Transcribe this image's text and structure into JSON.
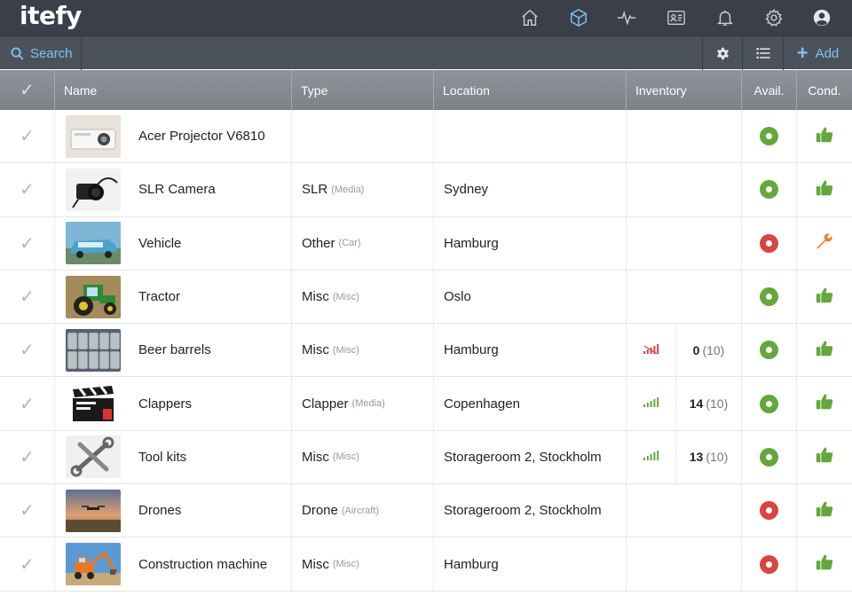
{
  "app": {
    "logo": "itefy"
  },
  "nav": [
    {
      "icon": "home-icon"
    },
    {
      "icon": "box-icon",
      "active": true
    },
    {
      "icon": "activity-icon"
    },
    {
      "icon": "id-card-icon"
    },
    {
      "icon": "bell-icon"
    },
    {
      "icon": "gear-icon"
    },
    {
      "icon": "user-icon"
    }
  ],
  "toolbar": {
    "search_label": "Search",
    "add_label": "Add"
  },
  "columns": {
    "name": "Name",
    "type": "Type",
    "location": "Location",
    "inventory": "Inventory",
    "avail": "Avail.",
    "cond": "Cond."
  },
  "colors": {
    "accent": "#7ec3f0",
    "ok": "#62a83a",
    "bad": "#d9453f",
    "warn": "#f07a2a"
  },
  "items": [
    {
      "name": "Acer Projector V6810",
      "type": "",
      "type_sub": "",
      "location": "",
      "qty": "",
      "qty_total": "",
      "signal": "",
      "avail": "ok",
      "cond": "thumbs-up-icon",
      "thumb": "projector"
    },
    {
      "name": "SLR Camera",
      "type": "SLR",
      "type_sub": "(Media)",
      "location": "Sydney",
      "qty": "",
      "qty_total": "",
      "signal": "",
      "avail": "ok",
      "cond": "thumbs-up-icon",
      "thumb": "camera"
    },
    {
      "name": "Vehicle",
      "type": "Other",
      "type_sub": "(Car)",
      "location": "Hamburg",
      "qty": "",
      "qty_total": "",
      "signal": "",
      "avail": "bad",
      "cond": "wrench-icon",
      "thumb": "car"
    },
    {
      "name": "Tractor",
      "type": "Misc",
      "type_sub": "(Misc)",
      "location": "Oslo",
      "qty": "",
      "qty_total": "",
      "signal": "",
      "avail": "ok",
      "cond": "thumbs-up-icon",
      "thumb": "tractor"
    },
    {
      "name": "Beer barrels",
      "type": "Misc",
      "type_sub": "(Misc)",
      "location": "Hamburg",
      "qty": "0",
      "qty_total": "(10)",
      "signal": "low",
      "avail": "ok",
      "cond": "thumbs-up-icon",
      "thumb": "barrels"
    },
    {
      "name": "Clappers",
      "type": "Clapper",
      "type_sub": "(Media)",
      "location": "Copenhagen",
      "qty": "14",
      "qty_total": "(10)",
      "signal": "high",
      "avail": "ok",
      "cond": "thumbs-up-icon",
      "thumb": "clapper"
    },
    {
      "name": "Tool kits",
      "type": "Misc",
      "type_sub": "(Misc)",
      "location": "Storageroom 2, Stockholm",
      "qty": "13",
      "qty_total": "(10)",
      "signal": "high",
      "avail": "ok",
      "cond": "thumbs-up-icon",
      "thumb": "tools"
    },
    {
      "name": "Drones",
      "type": "Drone",
      "type_sub": "(Aircraft)",
      "location": "Storageroom 2, Stockholm",
      "qty": "",
      "qty_total": "",
      "signal": "",
      "avail": "bad",
      "cond": "thumbs-up-icon",
      "thumb": "drone"
    },
    {
      "name": "Construction machine",
      "type": "Misc",
      "type_sub": "(Misc)",
      "location": "Hamburg",
      "qty": "",
      "qty_total": "",
      "signal": "",
      "avail": "bad",
      "cond": "thumbs-up-icon",
      "thumb": "excavator"
    }
  ]
}
